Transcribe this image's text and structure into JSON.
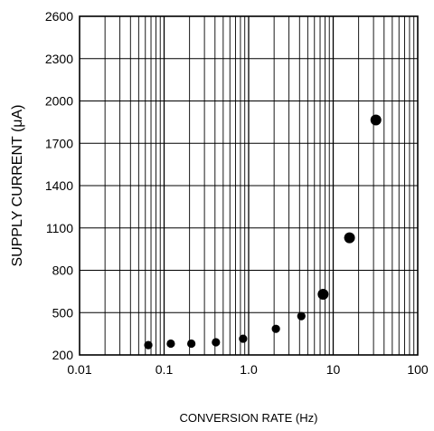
{
  "chart_data": {
    "type": "scatter",
    "title": "",
    "xlabel": "CONVERSION RATE (Hz)",
    "ylabel": "SUPPLY CURRENT (μA)",
    "xscale": "log",
    "xlim": [
      0.01,
      100
    ],
    "ylim": [
      200,
      2600
    ],
    "grid": true,
    "legend": "none",
    "xticks": [
      0.01,
      0.1,
      1.0,
      10,
      100
    ],
    "xtick_labels": [
      "0.01",
      "0.1",
      "1.0",
      "10",
      "100"
    ],
    "yticks": [
      200,
      500,
      800,
      1100,
      1400,
      1700,
      2000,
      2300,
      2600
    ],
    "ytick_labels": [
      "200",
      "500",
      "800",
      "1100",
      "1400",
      "1700",
      "2000",
      "2300",
      "2600"
    ],
    "series": [
      {
        "x": [
          0.065,
          0.12,
          0.21,
          0.41,
          0.86,
          2.1,
          4.2,
          7.6,
          15.6,
          32
        ],
        "y": [
          270,
          280,
          280,
          290,
          315,
          385,
          475,
          630,
          1030,
          1865
        ],
        "color": "#000000"
      }
    ]
  }
}
